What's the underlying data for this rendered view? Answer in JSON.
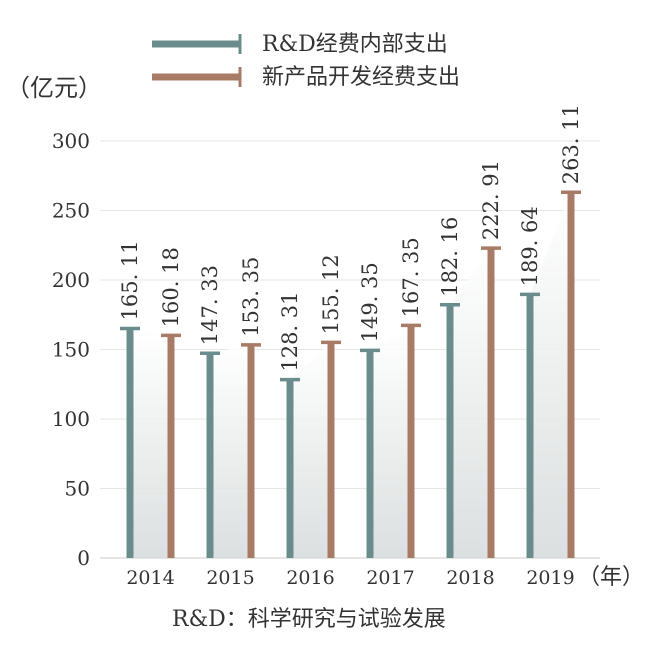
{
  "chart_data": {
    "type": "bar",
    "categories": [
      "2014",
      "2015",
      "2016",
      "2017",
      "2018",
      "2019"
    ],
    "series": [
      {
        "name": "R&D经费内部支出",
        "values": [
          165.11,
          147.33,
          128.31,
          149.35,
          182.16,
          189.64
        ],
        "value_labels": [
          "165. 11",
          "147. 33",
          "128. 31",
          "149. 35",
          "182. 16",
          "189. 64"
        ]
      },
      {
        "name": "新产品开发经费支出",
        "values": [
          160.18,
          153.35,
          155.12,
          167.35,
          222.91,
          263.11
        ],
        "value_labels": [
          "160. 18",
          "153. 35",
          "155. 12",
          "167. 35",
          "222. 91",
          "263. 11"
        ]
      }
    ],
    "yunit": "（亿元）",
    "xunit": "（年）",
    "yticks": [
      0,
      50,
      100,
      150,
      200,
      250,
      300
    ],
    "ylim": [
      0,
      300
    ],
    "note": "R&D：科学研究与试验发展",
    "legend_position": "top",
    "grid": true
  },
  "colors": {
    "series1": "#6b8c8d",
    "series2": "#a87b66",
    "grid": "#e6e6e6",
    "shadow_top": "#ffffff",
    "shadow_bottom": "#d8dcdc"
  }
}
